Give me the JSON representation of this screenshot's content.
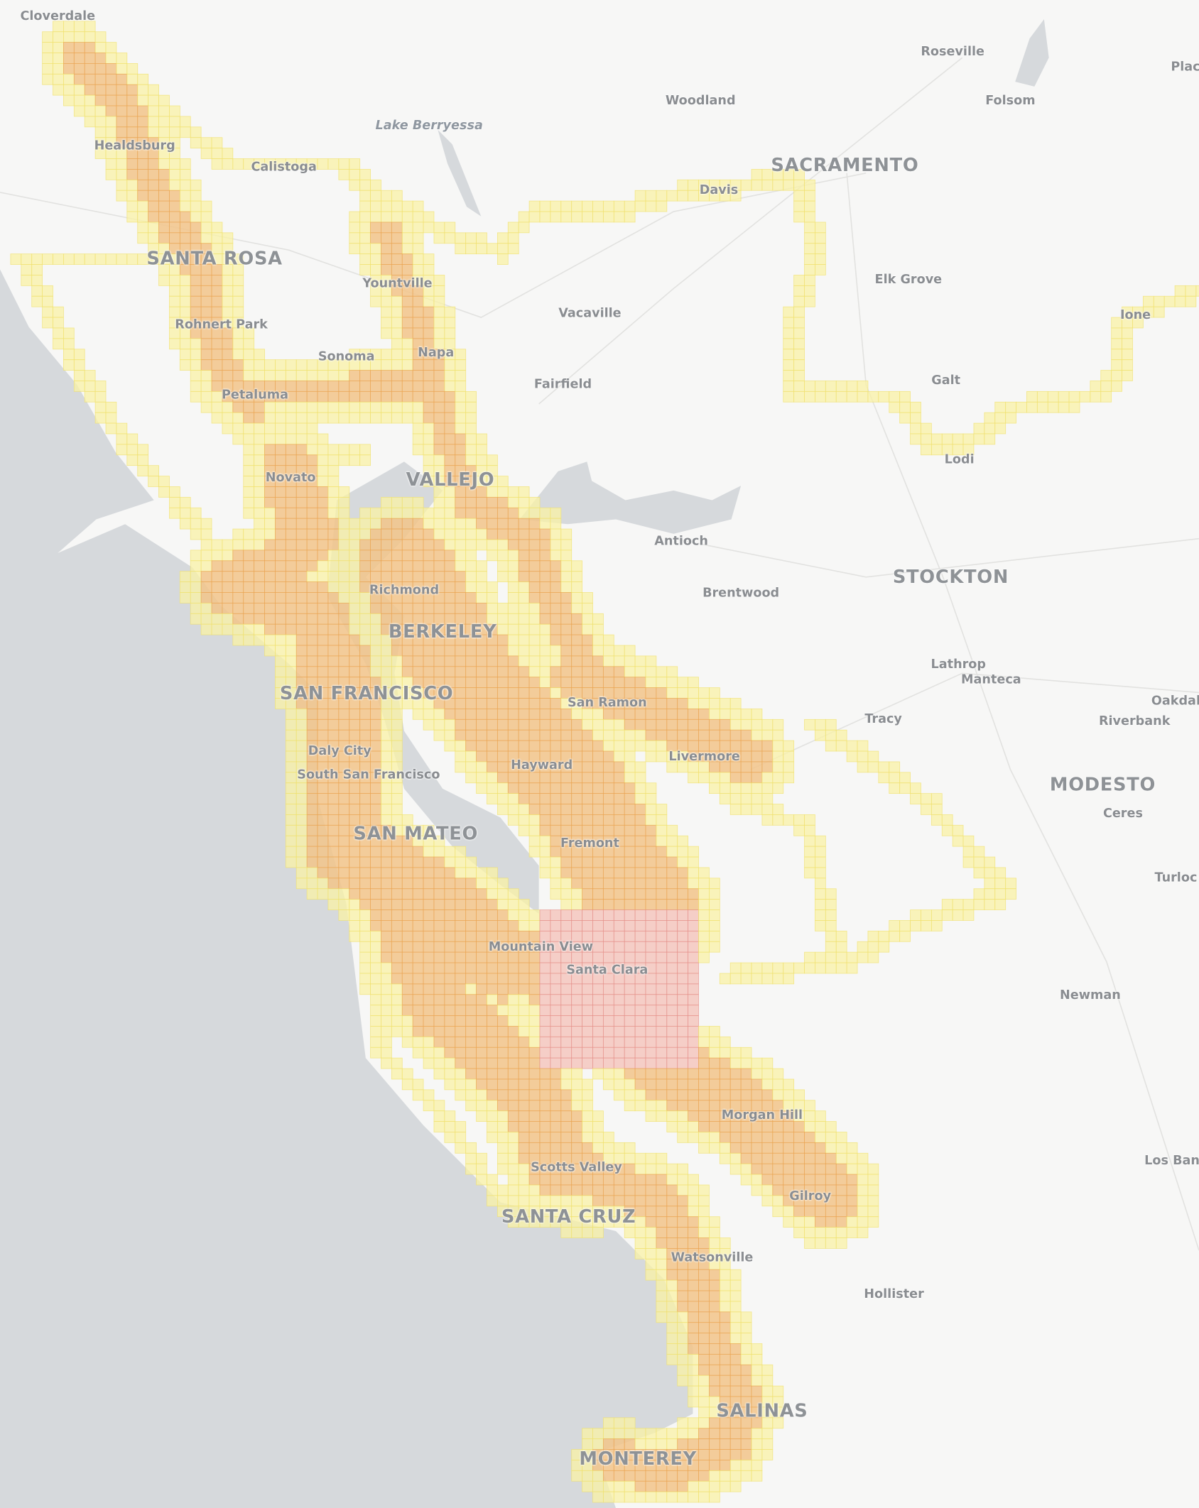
{
  "map": {
    "colors": {
      "land": "#f7f7f6",
      "water": "#d6d9dc",
      "coverage_core": "#f2c48a",
      "coverage_core_stroke": "#eaa24e",
      "coverage_edge": "#faf2a6",
      "coverage_edge_stroke": "#f0e06a",
      "selected_cell": "#f4c9c2",
      "selected_stroke": "#e48c84"
    },
    "labels": [
      {
        "text": "Cloverdale",
        "kind": "town"
      },
      {
        "text": "Roseville",
        "kind": "town"
      },
      {
        "text": "Plac",
        "kind": "town"
      },
      {
        "text": "Woodland",
        "kind": "town"
      },
      {
        "text": "Folsom",
        "kind": "town"
      },
      {
        "text": "Lake Berryessa",
        "kind": "water"
      },
      {
        "text": "Healdsburg",
        "kind": "town"
      },
      {
        "text": "Calistoga",
        "kind": "town"
      },
      {
        "text": "SACRAMENTO",
        "kind": "city"
      },
      {
        "text": "Davis",
        "kind": "town"
      },
      {
        "text": "SANTA ROSA",
        "kind": "city"
      },
      {
        "text": "Elk Grove",
        "kind": "town"
      },
      {
        "text": "Yountville",
        "kind": "town"
      },
      {
        "text": "Vacaville",
        "kind": "town"
      },
      {
        "text": "Ione",
        "kind": "town"
      },
      {
        "text": "Rohnert Park",
        "kind": "town"
      },
      {
        "text": "Sonoma",
        "kind": "town"
      },
      {
        "text": "Napa",
        "kind": "town"
      },
      {
        "text": "Galt",
        "kind": "town"
      },
      {
        "text": "Fairfield",
        "kind": "town"
      },
      {
        "text": "Petaluma",
        "kind": "town"
      },
      {
        "text": "Lodi",
        "kind": "town"
      },
      {
        "text": "Novato",
        "kind": "town"
      },
      {
        "text": "VALLEJO",
        "kind": "city"
      },
      {
        "text": "Antioch",
        "kind": "town"
      },
      {
        "text": "STOCKTON",
        "kind": "city"
      },
      {
        "text": "Brentwood",
        "kind": "town"
      },
      {
        "text": "Richmond",
        "kind": "town"
      },
      {
        "text": "BERKELEY",
        "kind": "city"
      },
      {
        "text": "Lathrop",
        "kind": "town"
      },
      {
        "text": "Manteca",
        "kind": "town"
      },
      {
        "text": "SAN FRANCISCO",
        "kind": "city"
      },
      {
        "text": "San Ramon",
        "kind": "town"
      },
      {
        "text": "Oakdal",
        "kind": "town"
      },
      {
        "text": "Tracy",
        "kind": "town"
      },
      {
        "text": "Riverbank",
        "kind": "town"
      },
      {
        "text": "Livermore",
        "kind": "town"
      },
      {
        "text": "Daly City",
        "kind": "town"
      },
      {
        "text": "Hayward",
        "kind": "town"
      },
      {
        "text": "South San Francisco",
        "kind": "town"
      },
      {
        "text": "MODESTO",
        "kind": "city"
      },
      {
        "text": "Ceres",
        "kind": "town"
      },
      {
        "text": "SAN MATEO",
        "kind": "city"
      },
      {
        "text": "Fremont",
        "kind": "town"
      },
      {
        "text": "Turloc",
        "kind": "town"
      },
      {
        "text": "Mountain View",
        "kind": "town"
      },
      {
        "text": "Santa Clara",
        "kind": "town"
      },
      {
        "text": "Newman",
        "kind": "town"
      },
      {
        "text": "Morgan Hill",
        "kind": "town"
      },
      {
        "text": "Los Ban",
        "kind": "town"
      },
      {
        "text": "Scotts Valley",
        "kind": "town"
      },
      {
        "text": "Gilroy",
        "kind": "town"
      },
      {
        "text": "SANTA CRUZ",
        "kind": "city"
      },
      {
        "text": "Watsonville",
        "kind": "town"
      },
      {
        "text": "Hollister",
        "kind": "town"
      },
      {
        "text": "SALINAS",
        "kind": "city"
      },
      {
        "text": "MONTEREY",
        "kind": "city"
      }
    ]
  }
}
